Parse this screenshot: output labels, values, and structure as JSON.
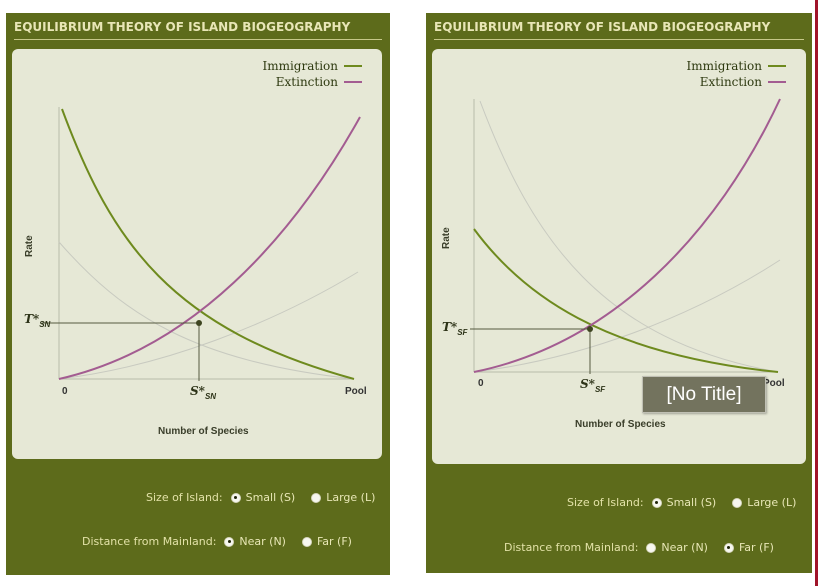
{
  "panels": [
    {
      "title": "EQUILIBRIUM THEORY OF ISLAND BIOGEOGRAPHY",
      "legend": {
        "immigration": "Immigration",
        "extinction": "Extinction"
      },
      "axes": {
        "ylabel": "Rate",
        "xlabel": "Number of Species",
        "x_origin": "0",
        "x_end": "Pool"
      },
      "equilibrium": {
        "t_label": "T*",
        "t_sub": "SN",
        "s_label": "S*",
        "s_sub": "SN"
      },
      "controls": {
        "size_label": "Size of Island:",
        "size_small": "Small (S)",
        "size_large": "Large (L)",
        "distance_label": "Distance from Mainland:",
        "distance_near": "Near (N)",
        "distance_far": "Far (F)"
      },
      "selected": {
        "size": "Small (S)",
        "distance": "Near (N)"
      }
    },
    {
      "title": "EQUILIBRIUM THEORY OF ISLAND BIOGEOGRAPHY",
      "legend": {
        "immigration": "Immigration",
        "extinction": "Extinction"
      },
      "axes": {
        "ylabel": "Rate",
        "xlabel": "Number of Species",
        "x_origin": "0",
        "x_end": "Pool"
      },
      "equilibrium": {
        "t_label": "T*",
        "t_sub": "SF",
        "s_label": "S*",
        "s_sub": "SF"
      },
      "controls": {
        "size_label": "Size of Island:",
        "size_small": "Small (S)",
        "size_large": "Large (L)",
        "distance_label": "Distance from Mainland:",
        "distance_near": "Near (N)",
        "distance_far": "Far (F)"
      },
      "selected": {
        "size": "Small (S)",
        "distance": "Far (F)"
      }
    }
  ],
  "tooltip": "[No Title]",
  "colors": {
    "panel_bg": "#5d6b1b",
    "plot_bg": "#e6e8d6",
    "immigration": "#6e8a1e",
    "extinction": "#a35c91",
    "reference_curve": "#c8cac0",
    "title_text": "#e8e6b6"
  }
}
